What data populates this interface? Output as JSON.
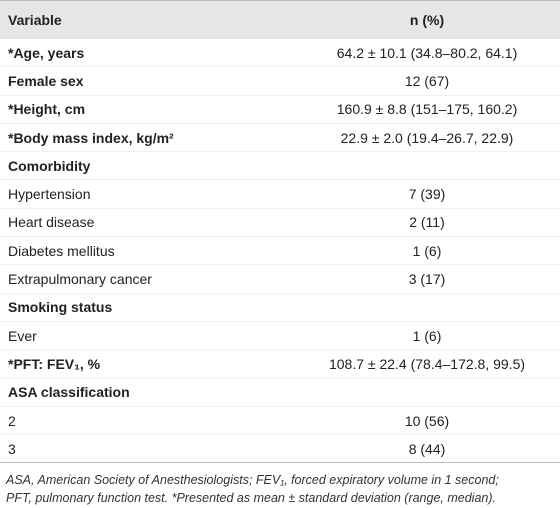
{
  "table": {
    "header": [
      "Variable",
      "n (%)"
    ],
    "rows": [
      {
        "label": "*Age, years",
        "value": "64.2 ± 10.1 (34.8–80.2, 64.1)",
        "bold": true
      },
      {
        "label": "Female sex",
        "value": "12 (67)",
        "bold": true
      },
      {
        "label": "*Height, cm",
        "value": "160.9 ± 8.8 (151–175, 160.2)",
        "bold": true
      },
      {
        "label": "*Body mass index, kg/m²",
        "value": "22.9 ± 2.0 (19.4–26.7, 22.9)",
        "bold": true
      },
      {
        "label": "Comorbidity",
        "bold": true
      },
      {
        "label": "Hypertension",
        "value": "7 (39)",
        "bold": false
      },
      {
        "label": "Heart disease",
        "value": "2 (11)",
        "bold": false
      },
      {
        "label": "Diabetes mellitus",
        "value": "1 (6)",
        "bold": false
      },
      {
        "label": "Extrapulmonary cancer",
        "value": "3 (17)",
        "bold": false
      },
      {
        "label": "Smoking status",
        "bold": true
      },
      {
        "label": "Ever",
        "value": "1 (6)",
        "bold": false
      },
      {
        "label": "*PFT: FEV₁, %",
        "value": "108.7 ± 22.4 (78.4–172.8, 99.5)",
        "bold": true
      },
      {
        "label": "ASA classification",
        "bold": true
      },
      {
        "label": "2",
        "value": "10 (56)",
        "bold": false
      },
      {
        "label": "3",
        "value": "8 (44)",
        "bold": false
      }
    ],
    "footnote": [
      "ASA, American Society of Anesthesiologists; FEV₁, forced expiratory volume in 1 second;",
      "PFT, pulmonary function test. *Presented as mean ± standard deviation (range, median)."
    ]
  }
}
